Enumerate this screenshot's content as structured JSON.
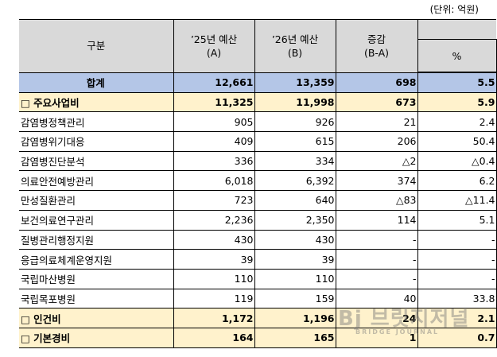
{
  "unit": "(단위: 억원)",
  "header": {
    "category": "구분",
    "budget25": [
      "’25년 예산",
      "(A)"
    ],
    "budget26": [
      "’26년 예산",
      "(B)"
    ],
    "change": [
      "증감",
      "(B-A)"
    ],
    "percent": "%"
  },
  "rows": [
    {
      "label": "합계",
      "a": "12,661",
      "b": "13,359",
      "diff": "698",
      "pct": "5.5",
      "type": "total"
    },
    {
      "label": "□ 주요사업비",
      "a": "11,325",
      "b": "11,998",
      "diff": "673",
      "pct": "5.9",
      "type": "sub"
    },
    {
      "label": "감염병정책관리",
      "a": "905",
      "b": "926",
      "diff": "21",
      "pct": "2.4",
      "type": "item"
    },
    {
      "label": "감염병위기대응",
      "a": "409",
      "b": "615",
      "diff": "206",
      "pct": "50.4",
      "type": "item"
    },
    {
      "label": "감염병진단분석",
      "a": "336",
      "b": "334",
      "diff": "△2",
      "pct": "△0.4",
      "type": "item"
    },
    {
      "label": "의료안전예방관리",
      "a": "6,018",
      "b": "6,392",
      "diff": "374",
      "pct": "6.2",
      "type": "item"
    },
    {
      "label": "만성질환관리",
      "a": "723",
      "b": "640",
      "diff": "△83",
      "pct": "△11.4",
      "type": "item"
    },
    {
      "label": "보건의료연구관리",
      "a": "2,236",
      "b": "2,350",
      "diff": "114",
      "pct": "5.1",
      "type": "item"
    },
    {
      "label": "질병관리행정지원",
      "a": "430",
      "b": "430",
      "diff": "-",
      "pct": "-",
      "type": "item"
    },
    {
      "label": "응급의료체계운영지원",
      "a": "39",
      "b": "39",
      "diff": "-",
      "pct": "-",
      "type": "item"
    },
    {
      "label": "국립마산병원",
      "a": "110",
      "b": "110",
      "diff": "-",
      "pct": "-",
      "type": "item"
    },
    {
      "label": "국립목포병원",
      "a": "119",
      "b": "159",
      "diff": "40",
      "pct": "33.8",
      "type": "item"
    },
    {
      "label": "□ 인건비",
      "a": "1,172",
      "b": "1,196",
      "diff": "24",
      "pct": "2.1",
      "type": "sub"
    },
    {
      "label": "□ 기본경비",
      "a": "164",
      "b": "165",
      "diff": "1",
      "pct": "0.7",
      "type": "sub"
    }
  ],
  "colors": {
    "header": "#d9d9d9",
    "total": "#b4c6e7",
    "subtotal": "#fff2cc"
  },
  "watermark": {
    "logo": "Bj",
    "name": "브릿지저널",
    "english": "BRIDGE JOURNAL"
  }
}
